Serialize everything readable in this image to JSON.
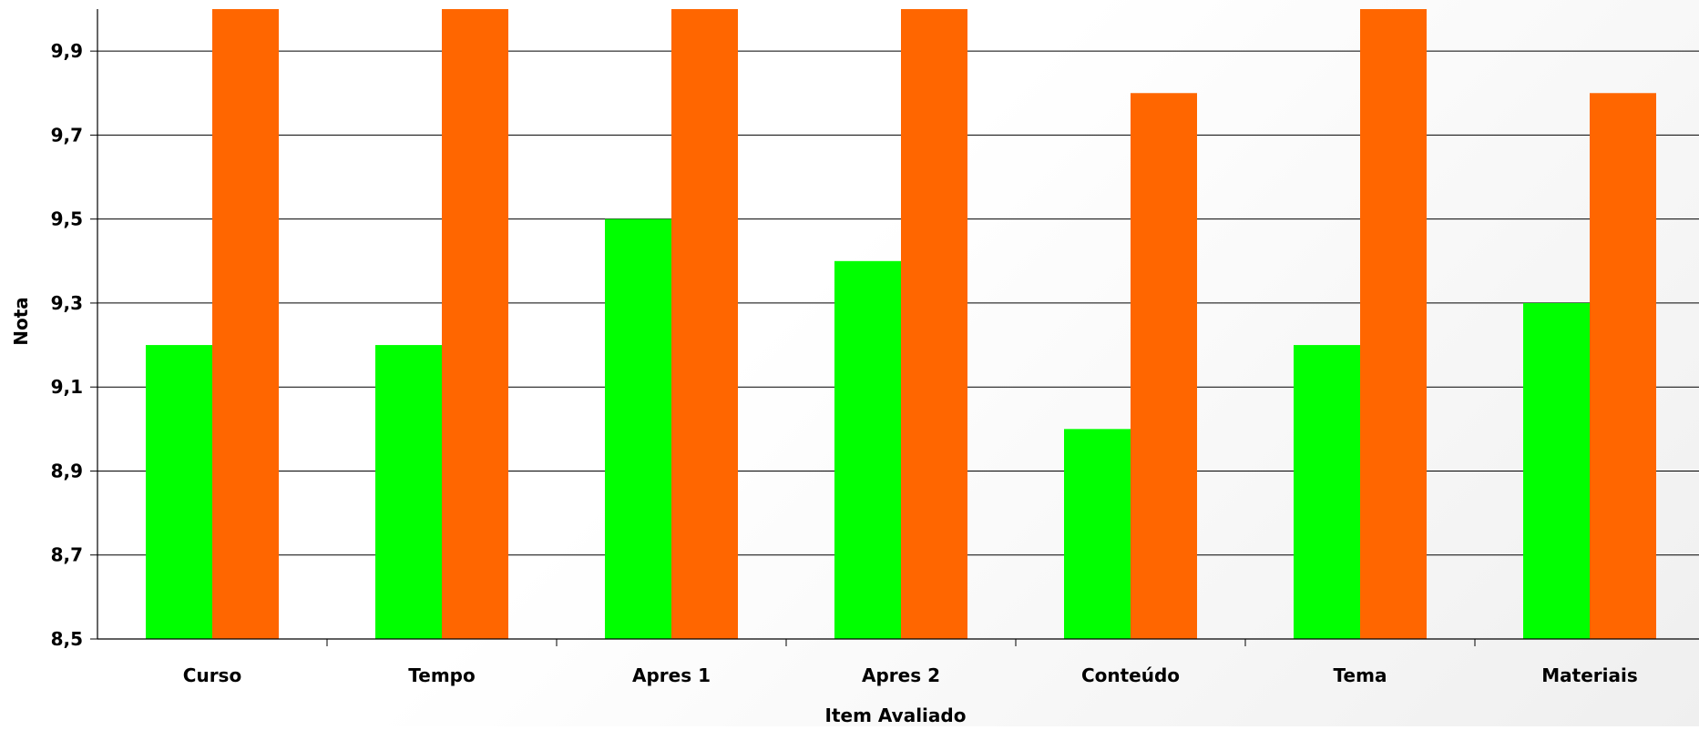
{
  "chart_data": {
    "type": "bar",
    "title": "",
    "xlabel": "Item Avaliado",
    "ylabel": "Nota",
    "categories": [
      "Curso",
      "Tempo",
      "Apres 1",
      "Apres 2",
      "Conteúdo",
      "Tema",
      "Materiais"
    ],
    "series": [
      {
        "color": "#00ff00",
        "values": [
          9.2,
          9.2,
          9.5,
          9.4,
          9.0,
          9.2,
          9.3
        ]
      },
      {
        "color": "#ff6600",
        "values": [
          10.0,
          10.0,
          10.0,
          10.0,
          9.8,
          10.0,
          9.8
        ]
      }
    ],
    "ylim": [
      8.5,
      10.0
    ],
    "yticks": [
      "8,5",
      "8,7",
      "8,9",
      "9,1",
      "9,3",
      "9,5",
      "9,7",
      "9,9"
    ],
    "ytick_values": [
      8.5,
      8.7,
      8.9,
      9.1,
      9.3,
      9.5,
      9.7,
      9.9
    ],
    "grid": true,
    "legend": "none"
  }
}
